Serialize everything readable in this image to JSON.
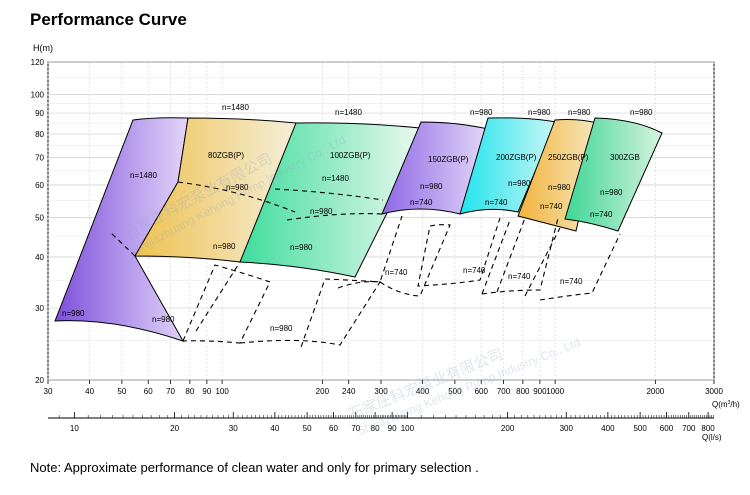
{
  "page": {
    "title": "Performance Curve",
    "footnote": "Note: Approximate performance of clean water and only for primary selection ."
  },
  "chart_data": {
    "type": "area",
    "title": "Performance Curve",
    "y_axis": {
      "label": "H(m)",
      "scale": "log",
      "range": [
        20,
        120
      ],
      "ticks": [
        20,
        30,
        40,
        50,
        60,
        70,
        80,
        90,
        100,
        120
      ]
    },
    "x_axis_flow_m3h": {
      "label": "Q(m³/h)",
      "scale": "log",
      "range": [
        30,
        3000
      ],
      "ticks": [
        30,
        40,
        50,
        60,
        70,
        80,
        90,
        100,
        200,
        240,
        300,
        400,
        500,
        600,
        700,
        800,
        900,
        1000,
        2000,
        3000
      ]
    },
    "x_axis_flow_ls": {
      "label": "Q(l/s)",
      "scale": "log",
      "ticks": [
        10,
        20,
        30,
        40,
        50,
        60,
        70,
        80,
        90,
        100,
        200,
        300,
        400,
        500,
        600,
        700,
        800
      ]
    },
    "grid": true,
    "series": [
      {
        "name": "",
        "speed_labels": [
          "n=1480",
          "n=980"
        ],
        "color": "#a77fe6",
        "Q_range_m3h": [
          30,
          75
        ],
        "H_n1480": [
          90,
          65
        ],
        "H_n980": [
          28,
          25
        ]
      },
      {
        "name": "80ZGB(P)",
        "speed_labels": [
          "n=1480",
          "n=980",
          "n=980"
        ],
        "color": "#efc85e",
        "Q_range_m3h": [
          60,
          150
        ],
        "H_n1480": [
          92,
          60
        ],
        "H_n980": [
          42,
          38
        ]
      },
      {
        "name": "100ZGB(P)",
        "speed_labels": [
          "n=1480",
          "n=1480",
          "n=980",
          "n=980",
          "n=980"
        ],
        "color": "#6ee0ac",
        "Q_range_m3h": [
          100,
          380
        ],
        "H_n1480": [
          92,
          55
        ],
        "H_n980": [
          40,
          35
        ]
      },
      {
        "name": "150ZGB(P)",
        "speed_labels": [
          "n=980",
          "n=980",
          "n=740",
          "n=740"
        ],
        "color": "#9d78e4",
        "Q_range_m3h": [
          280,
          650
        ],
        "H_n980": [
          92,
          52
        ],
        "H_n740": [
          52,
          33
        ]
      },
      {
        "name": "200ZGB(P)",
        "speed_labels": [
          "n=980",
          "n=980",
          "n=740",
          "n=740"
        ],
        "color": "#40e4e4",
        "Q_range_m3h": [
          500,
          950
        ],
        "H_n980": [
          95,
          52
        ],
        "H_n740": [
          53,
          32
        ]
      },
      {
        "name": "250ZGB(P)",
        "speed_labels": [
          "n=980",
          "n=980",
          "n=740",
          "n=740"
        ],
        "color": "#f0bb48",
        "Q_range_m3h": [
          680,
          1250
        ],
        "H_n980": [
          93,
          52
        ],
        "H_n740": [
          52,
          32
        ]
      },
      {
        "name": "300ZGB",
        "speed_labels": [
          "n=980",
          "n=980",
          "n=740",
          "n=740"
        ],
        "color": "#4ad89a",
        "Q_range_m3h": [
          900,
          2100
        ],
        "H_n980": [
          92,
          48
        ],
        "H_n740": [
          52,
          30
        ]
      }
    ]
  },
  "watermark": {
    "company": "石家庄科宏泵业有限公司",
    "english": "Shijiazhuang Kehong Pump Industry Co., Ltd"
  }
}
